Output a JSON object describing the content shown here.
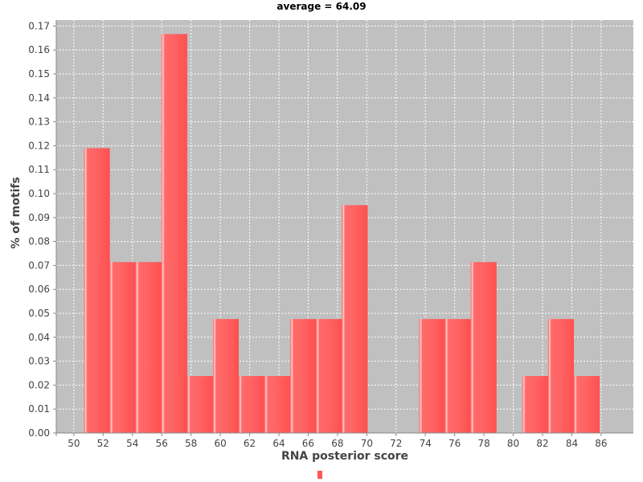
{
  "chart_data": {
    "type": "bar",
    "title": "average = 64.09",
    "xlabel": "RNA posterior score",
    "ylabel": "% of motifs",
    "xlim": [
      48.8,
      88.2
    ],
    "ylim": [
      0,
      0.1725
    ],
    "xticks": [
      50,
      52,
      54,
      56,
      58,
      60,
      62,
      64,
      66,
      68,
      70,
      72,
      74,
      76,
      78,
      80,
      82,
      84,
      86
    ],
    "yticks": [
      0.0,
      0.01,
      0.02,
      0.03,
      0.04,
      0.05,
      0.06,
      0.07,
      0.08,
      0.09,
      0.1,
      0.11,
      0.12,
      0.13,
      0.14,
      0.15,
      0.16,
      0.17
    ],
    "bin_width": 1.76,
    "series": [
      {
        "name": "",
        "color": "#ff5555",
        "bins": [
          {
            "x0": 50.7,
            "value": 0.119
          },
          {
            "x0": 52.46,
            "value": 0.0714
          },
          {
            "x0": 54.22,
            "value": 0.0714
          },
          {
            "x0": 55.98,
            "value": 0.1667
          },
          {
            "x0": 57.74,
            "value": 0.0238
          },
          {
            "x0": 59.5,
            "value": 0.0476
          },
          {
            "x0": 61.26,
            "value": 0.0238
          },
          {
            "x0": 63.02,
            "value": 0.0238
          },
          {
            "x0": 64.78,
            "value": 0.0476
          },
          {
            "x0": 66.54,
            "value": 0.0476
          },
          {
            "x0": 68.3,
            "value": 0.0952
          },
          {
            "x0": 70.06,
            "value": 0
          },
          {
            "x0": 71.82,
            "value": 0
          },
          {
            "x0": 73.58,
            "value": 0.0476
          },
          {
            "x0": 75.34,
            "value": 0.0476
          },
          {
            "x0": 77.1,
            "value": 0.0714
          },
          {
            "x0": 78.86,
            "value": 0
          },
          {
            "x0": 80.62,
            "value": 0.0238
          },
          {
            "x0": 82.38,
            "value": 0.0476
          },
          {
            "x0": 84.14,
            "value": 0.0238
          }
        ]
      }
    ],
    "grid": true,
    "legend": "bottom-center",
    "plot_background": "#c0c0c0"
  }
}
